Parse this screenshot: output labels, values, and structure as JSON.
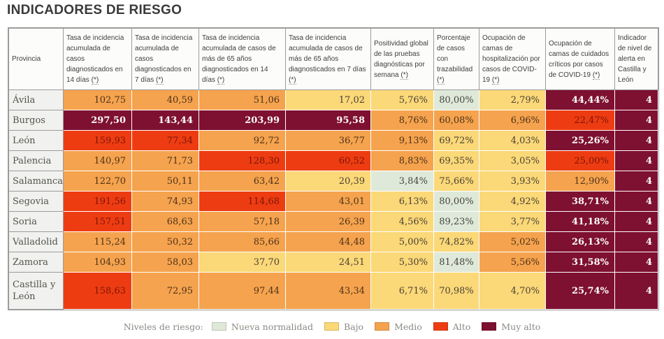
{
  "title": "INDICADORES DE RIESGO",
  "chart_data": {
    "type": "table",
    "title": "INDICADORES DE RIESGO",
    "footnote_marker": "(*)",
    "columns": [
      {
        "label": "Provincia",
        "footnote": false
      },
      {
        "label": "Tasa de incidencia acumulada de casos diagnosticados en 14 días",
        "footnote": true
      },
      {
        "label": "Tasa de incidencia acumulada de casos diagnosticados en 7 días",
        "footnote": true
      },
      {
        "label": "Tasa de incidencia acumulada de casos de más de 65 años diagnosticados en 14 días",
        "footnote": true
      },
      {
        "label": "Tasa de incidencia acumulada de casos de más de 65 años diagnosticados en 7 días",
        "footnote": true
      },
      {
        "label": "Positividad global de las pruebas diagnósticas por semana",
        "footnote": true
      },
      {
        "label": "Porcentaje de casos con trazabilidad",
        "footnote": true
      },
      {
        "label": "Ocupación de camas de hospitalización por casos de COVID-19",
        "footnote": true
      },
      {
        "label": "Ocupación de camas de cuidados críticos por casos de COVID-19",
        "footnote": true
      },
      {
        "label": "Indicador de nivel de alerta en Castilla y León",
        "footnote": false
      }
    ],
    "rows": [
      {
        "province": "Ávila",
        "values": [
          "102,75",
          "40,59",
          "51,06",
          "17,02",
          "5,76%",
          "80,00%",
          "2,79%",
          "44,44%",
          "4"
        ],
        "levels": [
          "medio",
          "medio",
          "medio",
          "bajo",
          "bajo",
          "nueva",
          "bajo",
          "muyalto",
          "muyalto"
        ]
      },
      {
        "province": "Burgos",
        "values": [
          "297,50",
          "143,44",
          "203,99",
          "95,58",
          "8,76%",
          "60,08%",
          "6,96%",
          "22,47%",
          "4"
        ],
        "levels": [
          "muyalto",
          "muyalto",
          "muyalto",
          "muyalto",
          "medio",
          "medio",
          "medio",
          "alto",
          "muyalto"
        ]
      },
      {
        "province": "León",
        "values": [
          "159,93",
          "77,34",
          "92,72",
          "36,77",
          "9,13%",
          "69,72%",
          "4,03%",
          "25,26%",
          "4"
        ],
        "levels": [
          "alto",
          "alto",
          "medio",
          "medio",
          "medio",
          "bajo",
          "bajo",
          "muyalto",
          "muyalto"
        ]
      },
      {
        "province": "Palencia",
        "values": [
          "140,97",
          "71,73",
          "128,30",
          "60,52",
          "8,83%",
          "69,35%",
          "3,05%",
          "25,00%",
          "4"
        ],
        "levels": [
          "medio",
          "medio",
          "alto",
          "alto",
          "medio",
          "bajo",
          "bajo",
          "alto",
          "muyalto"
        ]
      },
      {
        "province": "Salamanca",
        "values": [
          "122,70",
          "50,11",
          "63,42",
          "20,39",
          "3,84%",
          "75,66%",
          "3,93%",
          "12,90%",
          "4"
        ],
        "levels": [
          "medio",
          "medio",
          "medio",
          "bajo",
          "nueva",
          "bajo",
          "bajo",
          "medio",
          "muyalto"
        ]
      },
      {
        "province": "Segovia",
        "values": [
          "191,56",
          "74,93",
          "114,68",
          "43,01",
          "6,13%",
          "80,00%",
          "4,92%",
          "38,71%",
          "4"
        ],
        "levels": [
          "alto",
          "medio",
          "alto",
          "medio",
          "bajo",
          "nueva",
          "bajo",
          "muyalto",
          "muyalto"
        ]
      },
      {
        "province": "Soria",
        "values": [
          "157,51",
          "68,63",
          "57,18",
          "26,39",
          "4,56%",
          "89,23%",
          "3,77%",
          "41,18%",
          "4"
        ],
        "levels": [
          "alto",
          "medio",
          "medio",
          "medio",
          "bajo",
          "nueva",
          "bajo",
          "muyalto",
          "muyalto"
        ]
      },
      {
        "province": "Valladolid",
        "values": [
          "115,24",
          "50,32",
          "85,66",
          "44,48",
          "5,00%",
          "74,82%",
          "5,02%",
          "26,13%",
          "4"
        ],
        "levels": [
          "medio",
          "medio",
          "medio",
          "medio",
          "bajo",
          "bajo",
          "medio",
          "muyalto",
          "muyalto"
        ]
      },
      {
        "province": "Zamora",
        "values": [
          "104,93",
          "58,03",
          "37,70",
          "24,51",
          "5,30%",
          "81,48%",
          "5,56%",
          "31,58%",
          "4"
        ],
        "levels": [
          "medio",
          "medio",
          "bajo",
          "bajo",
          "bajo",
          "nueva",
          "medio",
          "muyalto",
          "muyalto"
        ]
      },
      {
        "province": "Castilla y León",
        "values": [
          "158,63",
          "72,95",
          "97,44",
          "43,34",
          "6,71%",
          "70,98%",
          "4,70%",
          "25,74%",
          "4"
        ],
        "levels": [
          "alto",
          "medio",
          "medio",
          "medio",
          "bajo",
          "bajo",
          "bajo",
          "muyalto",
          "muyalto"
        ]
      }
    ],
    "legend": {
      "label": "Niveles de riesgo:",
      "items": [
        {
          "label": "Nueva normalidad",
          "level": "nueva"
        },
        {
          "label": "Bajo",
          "level": "bajo"
        },
        {
          "label": "Medio",
          "level": "medio"
        },
        {
          "label": "Alto",
          "level": "alto"
        },
        {
          "label": "Muy alto",
          "level": "muyalto"
        }
      ]
    },
    "level_colors": {
      "nueva": "#DFE9D9",
      "bajo": "#FBD878",
      "medio": "#F5A34E",
      "alto": "#EE3C12",
      "muyalto": "#7E1031"
    }
  }
}
